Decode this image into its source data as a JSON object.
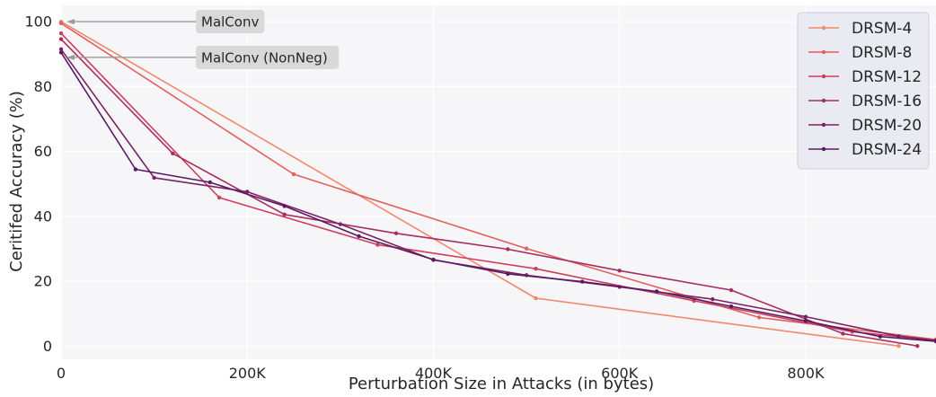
{
  "chart_data": {
    "type": "line",
    "xlabel": "Perturbation Size in Attacks (in bytes)",
    "ylabel": "Ceritifed Accuracy (%)",
    "xlim": [
      0,
      940000
    ],
    "ylim": [
      -4,
      105
    ],
    "x_ticks": [
      0,
      200000,
      400000,
      600000,
      800000
    ],
    "x_tick_labels": [
      "0",
      "200K",
      "400K",
      "600K",
      "800K"
    ],
    "y_ticks": [
      0,
      20,
      40,
      60,
      80,
      100
    ],
    "y_tick_labels": [
      "0",
      "20",
      "40",
      "60",
      "80",
      "100"
    ],
    "grid": true,
    "legend_position": "top-right",
    "series": [
      {
        "name": "DRSM-4",
        "color": "#f0896c",
        "x": [
          0,
          510000,
          900000
        ],
        "y": [
          100,
          14.8,
          0.1
        ]
      },
      {
        "name": "DRSM-8",
        "color": "#e35e5c",
        "x": [
          0,
          250000,
          500000,
          750000,
          940000
        ],
        "y": [
          99.5,
          53,
          30.1,
          8.9,
          2.1
        ]
      },
      {
        "name": "DRSM-12",
        "color": "#cc3e5b",
        "x": [
          0,
          170000,
          340000,
          510000,
          680000,
          850000,
          940000
        ],
        "y": [
          96.4,
          45.8,
          31.3,
          23.9,
          14,
          4.5,
          1.8
        ]
      },
      {
        "name": "DRSM-16",
        "color": "#a62d5e",
        "x": [
          0,
          120000,
          240000,
          360000,
          480000,
          600000,
          720000,
          840000,
          920000
        ],
        "y": [
          94.6,
          59.4,
          40.6,
          34.8,
          29.9,
          23.3,
          17.3,
          3.9,
          0.1
        ]
      },
      {
        "name": "DRSM-20",
        "color": "#7e2161",
        "x": [
          0,
          100000,
          200000,
          300000,
          400000,
          500000,
          600000,
          700000,
          800000,
          900000,
          940000
        ],
        "y": [
          91.5,
          51.9,
          47.6,
          37.6,
          26.6,
          21.9,
          18.3,
          14.5,
          9.1,
          3.1,
          1.8
        ]
      },
      {
        "name": "DRSM-24",
        "color": "#5a1a63",
        "x": [
          0,
          80000,
          160000,
          240000,
          320000,
          400000,
          480000,
          560000,
          640000,
          720000,
          800000,
          880000,
          940000
        ],
        "y": [
          90.5,
          54.5,
          50.5,
          43.2,
          33.9,
          26.7,
          22.3,
          19.9,
          16.9,
          12.3,
          7.8,
          3,
          1.5
        ]
      }
    ],
    "annotations": [
      {
        "text": "MalConv",
        "y": 100
      },
      {
        "text": "MalConv (NonNeg)",
        "y": 89
      }
    ]
  }
}
